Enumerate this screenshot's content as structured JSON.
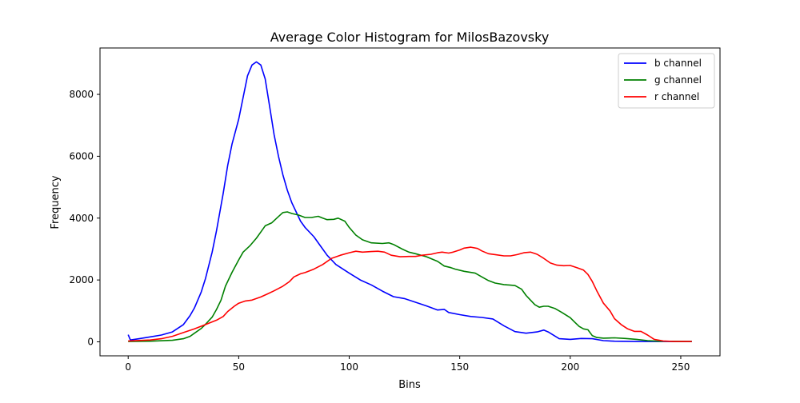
{
  "chart_data": {
    "type": "line",
    "title": "Average Color Histogram for MilosBazovsky",
    "xlabel": "Bins",
    "ylabel": "Frequency",
    "xlim": [
      -12.75,
      267.75
    ],
    "ylim": [
      -452,
      9500
    ],
    "xticks": [
      0,
      50,
      100,
      150,
      200,
      250
    ],
    "yticks": [
      0,
      2000,
      4000,
      6000,
      8000
    ],
    "grid": false,
    "legend_position": "upper right",
    "series": [
      {
        "name": "b channel",
        "color": "#0000ff",
        "points": [
          [
            0,
            230
          ],
          [
            1,
            60
          ],
          [
            5,
            100
          ],
          [
            10,
            160
          ],
          [
            15,
            220
          ],
          [
            20,
            320
          ],
          [
            25,
            560
          ],
          [
            28,
            850
          ],
          [
            30,
            1100
          ],
          [
            33,
            1600
          ],
          [
            35,
            2050
          ],
          [
            38,
            2900
          ],
          [
            40,
            3600
          ],
          [
            43,
            4800
          ],
          [
            45,
            5700
          ],
          [
            47,
            6400
          ],
          [
            50,
            7200
          ],
          [
            52,
            7900
          ],
          [
            54,
            8600
          ],
          [
            56,
            8950
          ],
          [
            58,
            9050
          ],
          [
            60,
            8950
          ],
          [
            62,
            8500
          ],
          [
            64,
            7600
          ],
          [
            66,
            6700
          ],
          [
            68,
            6000
          ],
          [
            70,
            5400
          ],
          [
            72,
            4900
          ],
          [
            74,
            4500
          ],
          [
            76,
            4200
          ],
          [
            78,
            3900
          ],
          [
            80,
            3700
          ],
          [
            84,
            3400
          ],
          [
            87,
            3100
          ],
          [
            90,
            2800
          ],
          [
            94,
            2500
          ],
          [
            100,
            2220
          ],
          [
            105,
            2000
          ],
          [
            110,
            1840
          ],
          [
            115,
            1640
          ],
          [
            120,
            1460
          ],
          [
            125,
            1400
          ],
          [
            130,
            1280
          ],
          [
            135,
            1160
          ],
          [
            140,
            1030
          ],
          [
            143,
            1050
          ],
          [
            145,
            950
          ],
          [
            150,
            880
          ],
          [
            155,
            820
          ],
          [
            160,
            790
          ],
          [
            165,
            740
          ],
          [
            170,
            520
          ],
          [
            175,
            330
          ],
          [
            180,
            280
          ],
          [
            185,
            320
          ],
          [
            188,
            380
          ],
          [
            190,
            320
          ],
          [
            195,
            100
          ],
          [
            200,
            80
          ],
          [
            205,
            110
          ],
          [
            210,
            100
          ],
          [
            215,
            40
          ],
          [
            220,
            20
          ],
          [
            230,
            10
          ],
          [
            240,
            10
          ],
          [
            255,
            10
          ]
        ]
      },
      {
        "name": "g channel",
        "color": "#008000",
        "points": [
          [
            0,
            10
          ],
          [
            10,
            20
          ],
          [
            20,
            50
          ],
          [
            25,
            100
          ],
          [
            28,
            180
          ],
          [
            30,
            280
          ],
          [
            33,
            430
          ],
          [
            35,
            570
          ],
          [
            38,
            800
          ],
          [
            40,
            1050
          ],
          [
            42,
            1350
          ],
          [
            44,
            1800
          ],
          [
            47,
            2250
          ],
          [
            50,
            2650
          ],
          [
            52,
            2900
          ],
          [
            55,
            3100
          ],
          [
            58,
            3350
          ],
          [
            60,
            3550
          ],
          [
            62,
            3750
          ],
          [
            65,
            3850
          ],
          [
            68,
            4050
          ],
          [
            70,
            4180
          ],
          [
            72,
            4200
          ],
          [
            74,
            4150
          ],
          [
            77,
            4100
          ],
          [
            80,
            4020
          ],
          [
            83,
            4020
          ],
          [
            86,
            4060
          ],
          [
            88,
            4000
          ],
          [
            90,
            3950
          ],
          [
            93,
            3960
          ],
          [
            95,
            4000
          ],
          [
            98,
            3900
          ],
          [
            100,
            3700
          ],
          [
            103,
            3450
          ],
          [
            106,
            3300
          ],
          [
            110,
            3200
          ],
          [
            115,
            3180
          ],
          [
            118,
            3200
          ],
          [
            120,
            3150
          ],
          [
            124,
            3000
          ],
          [
            127,
            2900
          ],
          [
            130,
            2850
          ],
          [
            135,
            2750
          ],
          [
            140,
            2600
          ],
          [
            143,
            2450
          ],
          [
            146,
            2400
          ],
          [
            148,
            2350
          ],
          [
            152,
            2280
          ],
          [
            157,
            2220
          ],
          [
            160,
            2100
          ],
          [
            163,
            1980
          ],
          [
            166,
            1900
          ],
          [
            170,
            1850
          ],
          [
            175,
            1820
          ],
          [
            178,
            1700
          ],
          [
            180,
            1500
          ],
          [
            182,
            1350
          ],
          [
            184,
            1200
          ],
          [
            186,
            1120
          ],
          [
            188,
            1150
          ],
          [
            190,
            1150
          ],
          [
            193,
            1080
          ],
          [
            196,
            960
          ],
          [
            200,
            780
          ],
          [
            202,
            640
          ],
          [
            204,
            500
          ],
          [
            206,
            420
          ],
          [
            208,
            390
          ],
          [
            210,
            200
          ],
          [
            212,
            140
          ],
          [
            215,
            120
          ],
          [
            220,
            130
          ],
          [
            225,
            110
          ],
          [
            230,
            80
          ],
          [
            235,
            40
          ],
          [
            240,
            20
          ],
          [
            255,
            10
          ]
        ]
      },
      {
        "name": "r channel",
        "color": "#ff0000",
        "points": [
          [
            0,
            30
          ],
          [
            10,
            60
          ],
          [
            15,
            100
          ],
          [
            20,
            180
          ],
          [
            25,
            300
          ],
          [
            30,
            420
          ],
          [
            35,
            560
          ],
          [
            40,
            700
          ],
          [
            43,
            820
          ],
          [
            45,
            980
          ],
          [
            48,
            1150
          ],
          [
            50,
            1250
          ],
          [
            53,
            1320
          ],
          [
            56,
            1350
          ],
          [
            60,
            1450
          ],
          [
            63,
            1550
          ],
          [
            66,
            1650
          ],
          [
            70,
            1800
          ],
          [
            73,
            1950
          ],
          [
            75,
            2100
          ],
          [
            78,
            2200
          ],
          [
            80,
            2240
          ],
          [
            84,
            2350
          ],
          [
            88,
            2500
          ],
          [
            92,
            2700
          ],
          [
            96,
            2800
          ],
          [
            100,
            2880
          ],
          [
            103,
            2930
          ],
          [
            106,
            2900
          ],
          [
            110,
            2920
          ],
          [
            113,
            2930
          ],
          [
            116,
            2900
          ],
          [
            119,
            2800
          ],
          [
            123,
            2750
          ],
          [
            127,
            2760
          ],
          [
            130,
            2760
          ],
          [
            133,
            2800
          ],
          [
            137,
            2830
          ],
          [
            140,
            2880
          ],
          [
            142,
            2900
          ],
          [
            145,
            2870
          ],
          [
            147,
            2900
          ],
          [
            150,
            2970
          ],
          [
            152,
            3030
          ],
          [
            155,
            3060
          ],
          [
            158,
            3020
          ],
          [
            160,
            2940
          ],
          [
            163,
            2850
          ],
          [
            166,
            2820
          ],
          [
            170,
            2780
          ],
          [
            173,
            2780
          ],
          [
            176,
            2820
          ],
          [
            179,
            2880
          ],
          [
            182,
            2900
          ],
          [
            185,
            2830
          ],
          [
            188,
            2700
          ],
          [
            191,
            2550
          ],
          [
            194,
            2480
          ],
          [
            197,
            2460
          ],
          [
            200,
            2470
          ],
          [
            203,
            2400
          ],
          [
            206,
            2320
          ],
          [
            208,
            2180
          ],
          [
            210,
            1950
          ],
          [
            212,
            1650
          ],
          [
            215,
            1250
          ],
          [
            218,
            1000
          ],
          [
            220,
            750
          ],
          [
            223,
            560
          ],
          [
            226,
            420
          ],
          [
            229,
            340
          ],
          [
            232,
            340
          ],
          [
            235,
            220
          ],
          [
            238,
            80
          ],
          [
            242,
            30
          ],
          [
            247,
            10
          ],
          [
            255,
            10
          ]
        ]
      }
    ]
  }
}
